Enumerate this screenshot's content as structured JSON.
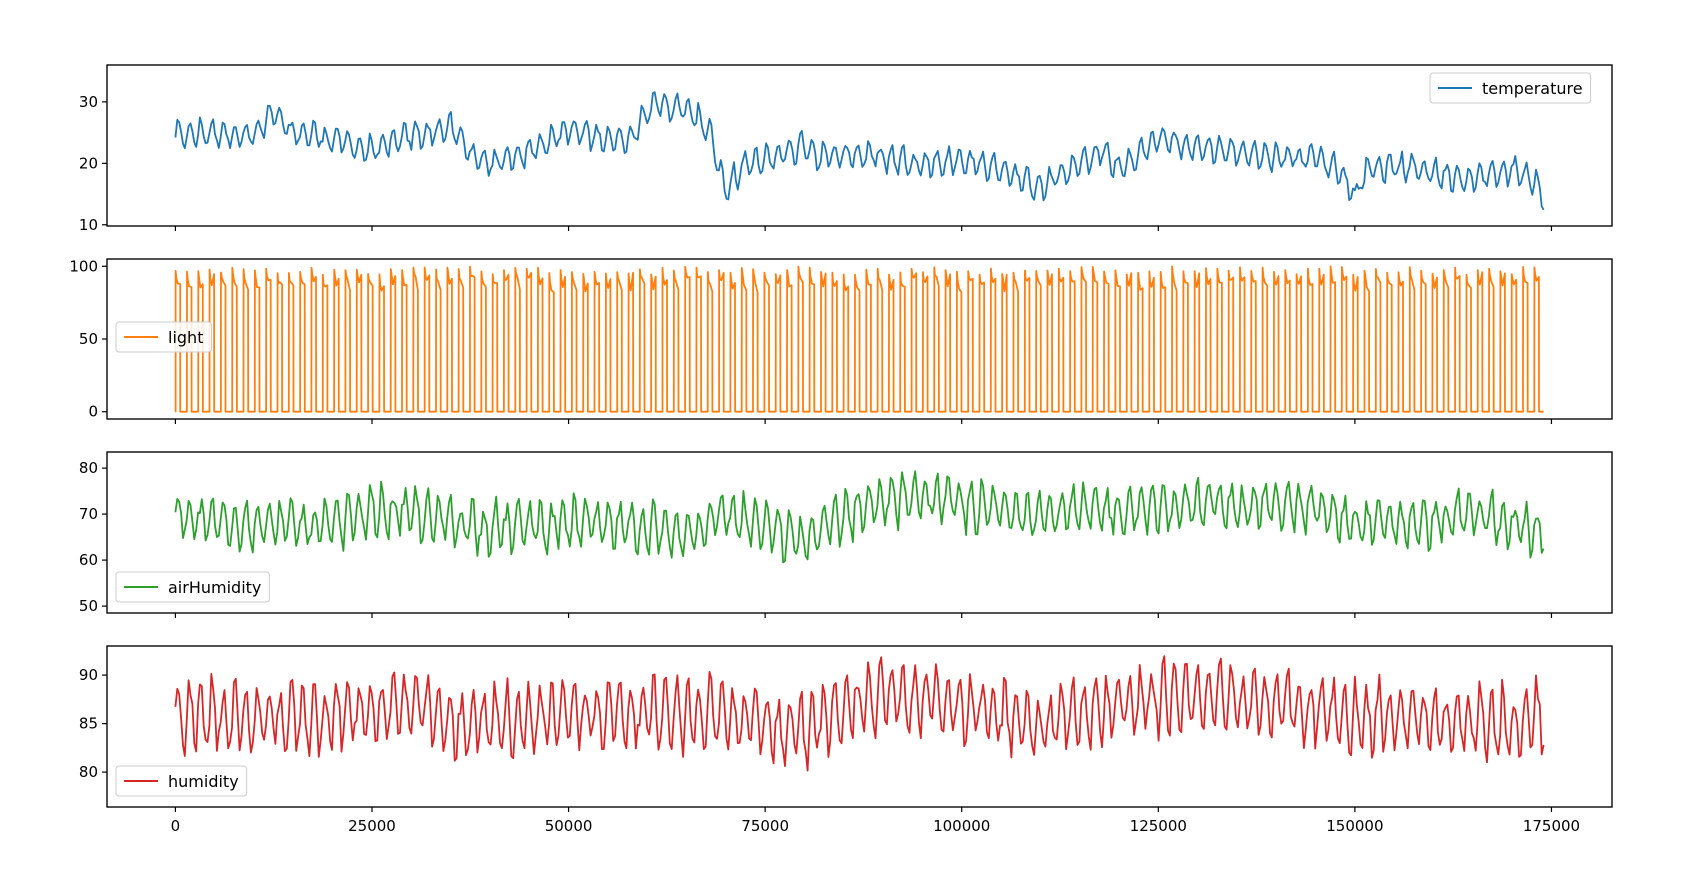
{
  "chart_data": [
    {
      "type": "line",
      "title": "",
      "xlabel": "",
      "ylabel": "",
      "xlim": [
        -8700,
        182700
      ],
      "ylim": [
        9.8,
        36.0
      ],
      "xticks": [
        0,
        25000,
        50000,
        75000,
        100000,
        125000,
        150000,
        175000
      ],
      "xtick_labels": [
        "0",
        "25000",
        "50000",
        "75000",
        "100000",
        "125000",
        "150000",
        "175000"
      ],
      "show_xtick_labels": false,
      "yticks": [
        10,
        20,
        30
      ],
      "ytick_labels": [
        "10",
        "20",
        "30"
      ],
      "grid": false,
      "legend_loc": "upper right",
      "series": [
        {
          "name": "temperature",
          "color": "#1f77b4",
          "x": [
            0,
            5000,
            10000,
            12500,
            15000,
            20000,
            25000,
            30000,
            33000,
            35000,
            38000,
            40000,
            45000,
            50000,
            55000,
            58000,
            60000,
            62000,
            65000,
            68000,
            69000,
            70000,
            72000,
            75000,
            80000,
            82000,
            85000,
            90000,
            95000,
            100000,
            105000,
            110000,
            112000,
            115000,
            118000,
            120000,
            125000,
            130000,
            135000,
            140000,
            145000,
            148000,
            150000,
            152000,
            155000,
            160000,
            165000,
            170000,
            173000,
            174000
          ],
          "y": [
            24.5,
            25.0,
            24.5,
            28.0,
            25.0,
            24.0,
            22.0,
            24.5,
            25.0,
            26.0,
            21.0,
            20.0,
            22.0,
            25.5,
            24.0,
            24.0,
            29.0,
            29.5,
            28.5,
            25.5,
            20.0,
            15.0,
            19.5,
            20.5,
            23.0,
            21.0,
            21.5,
            21.0,
            20.0,
            20.5,
            19.0,
            16.0,
            17.5,
            20.0,
            22.0,
            19.0,
            24.0,
            22.5,
            22.0,
            21.0,
            21.0,
            19.0,
            15.0,
            19.5,
            19.5,
            18.5,
            17.5,
            19.0,
            17.0,
            14.0
          ],
          "amplitude": 2.5,
          "cycle_length": 1440
        }
      ]
    },
    {
      "type": "line",
      "title": "",
      "xlabel": "",
      "ylabel": "",
      "xlim": [
        -8700,
        182700
      ],
      "ylim": [
        -5,
        105
      ],
      "xticks": [
        0,
        25000,
        50000,
        75000,
        100000,
        125000,
        150000,
        175000
      ],
      "xtick_labels": [
        "0",
        "25000",
        "50000",
        "75000",
        "100000",
        "125000",
        "150000",
        "175000"
      ],
      "show_xtick_labels": false,
      "yticks": [
        0,
        50,
        100
      ],
      "ytick_labels": [
        "0",
        "50",
        "100"
      ],
      "grid": false,
      "legend_loc": "center left",
      "series": [
        {
          "name": "light",
          "color": "#ff7f0e",
          "x": [
            0,
            174000
          ],
          "off_value": 0,
          "on_peak": 100,
          "on_end": 82,
          "cycle_length": 1440,
          "duty": 0.42
        }
      ]
    },
    {
      "type": "line",
      "title": "",
      "xlabel": "",
      "ylabel": "",
      "xlim": [
        -8700,
        182700
      ],
      "ylim": [
        48.5,
        83.5
      ],
      "xticks": [
        0,
        25000,
        50000,
        75000,
        100000,
        125000,
        150000,
        175000
      ],
      "xtick_labels": [
        "0",
        "25000",
        "50000",
        "75000",
        "100000",
        "125000",
        "150000",
        "175000"
      ],
      "show_xtick_labels": false,
      "yticks": [
        50,
        60,
        70,
        80
      ],
      "ytick_labels": [
        "50",
        "60",
        "70",
        "80"
      ],
      "grid": false,
      "legend_loc": "lower left",
      "series": [
        {
          "name": "airHumidity",
          "color": "#2ca02c",
          "x": [
            0,
            10000,
            20000,
            25000,
            30000,
            40000,
            50000,
            60000,
            65000,
            70000,
            75000,
            80000,
            85000,
            90000,
            95000,
            100000,
            110000,
            120000,
            130000,
            140000,
            145000,
            150000,
            160000,
            165000,
            170000,
            174000
          ],
          "y": [
            69,
            68,
            67,
            71,
            70,
            67,
            68,
            67,
            66,
            70,
            67,
            64,
            70,
            73,
            74,
            72,
            70,
            71,
            72,
            72,
            71,
            68,
            68,
            70,
            68,
            66
          ],
          "amplitude": 6,
          "cycle_length": 1440
        }
      ]
    },
    {
      "type": "line",
      "title": "",
      "xlabel": "",
      "ylabel": "",
      "xlim": [
        -8700,
        182700
      ],
      "ylim": [
        76.4,
        93.0
      ],
      "xticks": [
        0,
        25000,
        50000,
        75000,
        100000,
        125000,
        150000,
        175000
      ],
      "xtick_labels": [
        "0",
        "25000",
        "50000",
        "75000",
        "100000",
        "125000",
        "150000",
        "175000"
      ],
      "show_xtick_labels": true,
      "yticks": [
        80,
        85,
        90
      ],
      "ytick_labels": [
        "80",
        "85",
        "90"
      ],
      "grid": false,
      "legend_loc": "lower left",
      "series": [
        {
          "name": "humidity",
          "color": "#d62728",
          "x": [
            0,
            10000,
            20000,
            30000,
            35000,
            40000,
            50000,
            60000,
            70000,
            75000,
            80000,
            85000,
            90000,
            100000,
            110000,
            120000,
            130000,
            140000,
            150000,
            160000,
            170000,
            174000
          ],
          "y": [
            86,
            85.5,
            86,
            87,
            85,
            85,
            86,
            86,
            86,
            85,
            84,
            87,
            88,
            87,
            85,
            87,
            88,
            87,
            86,
            85,
            85,
            86
          ],
          "amplitude": 4,
          "cycle_length": 1440
        }
      ]
    }
  ]
}
